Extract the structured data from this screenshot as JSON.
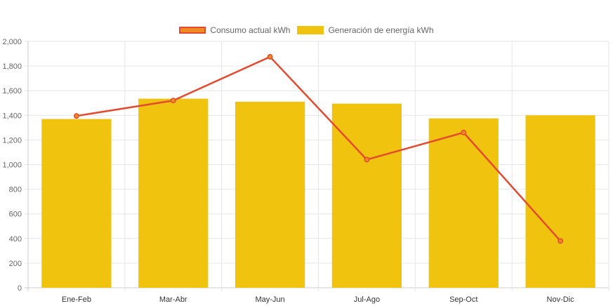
{
  "chart_data": {
    "type": "bar",
    "categories": [
      "Ene-Feb",
      "Mar-Abr",
      "May-Jun",
      "Jul-Ago",
      "Sep-Oct",
      "Nov-Dic"
    ],
    "series": [
      {
        "name": "Consumo actual kWh",
        "type": "line",
        "color": "#e24b2f",
        "values": [
          1395,
          1520,
          1875,
          1040,
          1260,
          380
        ]
      },
      {
        "name": "Generación de energía kWh",
        "type": "bar",
        "color": "#f0c30f",
        "values": [
          1370,
          1535,
          1510,
          1495,
          1375,
          1400
        ]
      }
    ],
    "yticks": [
      "0",
      "200",
      "400",
      "600",
      "800",
      "1,000",
      "1,200",
      "1,400",
      "1,600",
      "1,800",
      "2,000"
    ],
    "ylim": [
      0,
      2000
    ],
    "grid": true,
    "legend_position": "top-center",
    "title": "",
    "xlabel": "",
    "ylabel": ""
  }
}
